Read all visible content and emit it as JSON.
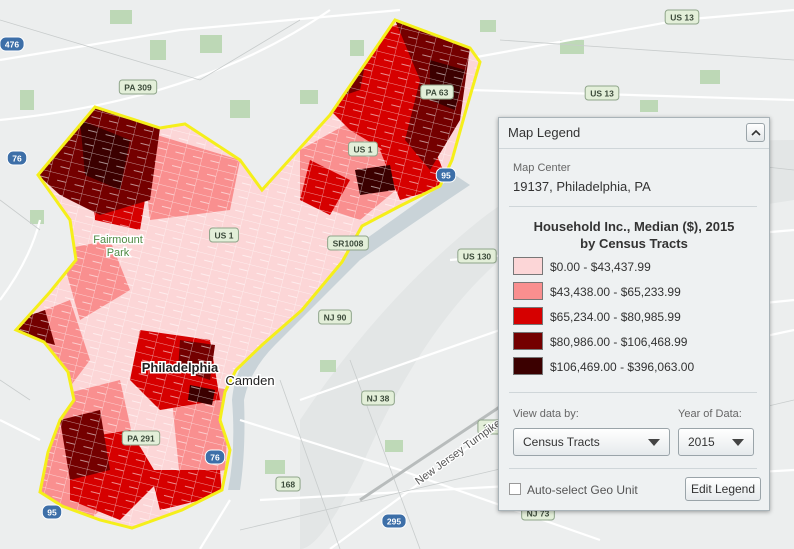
{
  "map": {
    "labels": [
      "US 13",
      "PA 309",
      "476",
      "US 13",
      "PA 63",
      "US 1",
      "95",
      "76",
      "Fairmount",
      "Park",
      "US 1",
      "SR1008",
      "US 130",
      "NJ 90",
      "Philadelphia",
      "Camden",
      "NJ 38",
      "PA 291",
      "76",
      "168",
      "295",
      "NJ 73",
      "130",
      "New Jersey Turnpike",
      "95"
    ]
  },
  "legend": {
    "header": "Map Legend",
    "map_center_label": "Map Center",
    "map_center": "19137, Philadelphia, PA",
    "title": "Household Inc., Median ($), 2015",
    "subtitle": "by Census Tracts",
    "items": [
      {
        "label": "$0.00 - $43,437.99",
        "color": "#fcd6d7"
      },
      {
        "label": "$43,438.00 - $65,233.99",
        "color": "#f98f8f"
      },
      {
        "label": "$65,234.00 - $80,985.99",
        "color": "#d60000"
      },
      {
        "label": "$80,986.00 - $106,468.99",
        "color": "#740000"
      },
      {
        "label": "$106,469.00 - $396,063.00",
        "color": "#3b0000"
      }
    ],
    "view_by_label": "View data by:",
    "view_by": "Census Tracts",
    "year_label": "Year of Data:",
    "year": "2015",
    "auto_select": "Auto-select Geo Unit",
    "edit_button": "Edit Legend"
  }
}
